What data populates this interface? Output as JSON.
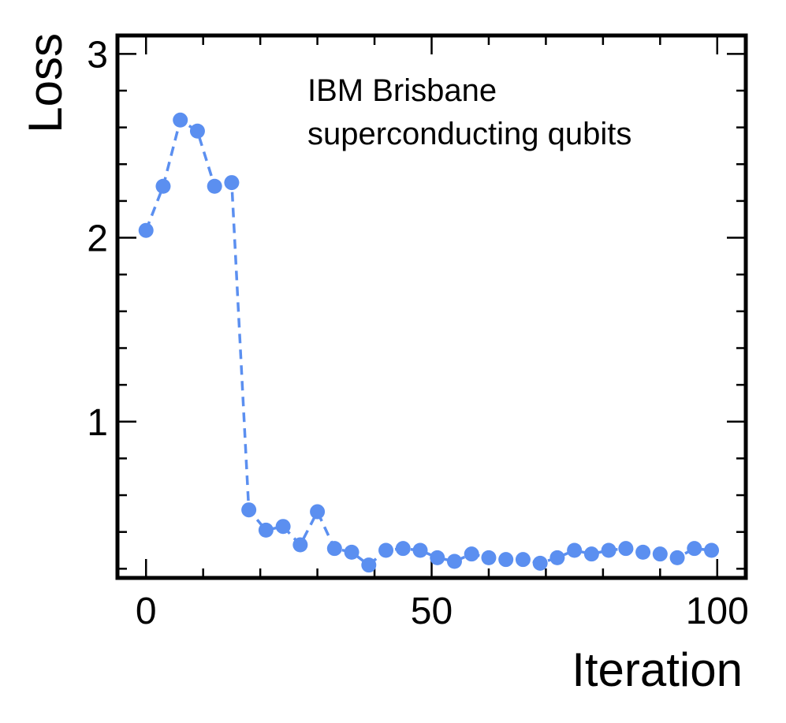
{
  "chart_data": {
    "type": "line",
    "xlabel": "Iteration",
    "ylabel": "Loss",
    "xlim": [
      -5,
      105
    ],
    "ylim": [
      0.15,
      3.1
    ],
    "x_ticks": [
      0,
      50,
      100
    ],
    "x_tick_labels": [
      "0",
      "50",
      "100"
    ],
    "y_ticks": [
      1,
      2,
      3
    ],
    "y_tick_labels": [
      "1",
      "2",
      "3"
    ],
    "annotation": [
      "IBM Brisbane",
      "superconducting qubits"
    ],
    "grid": false,
    "series": [
      {
        "color": "#5b8ff0",
        "line_style": "dashed",
        "marker": "circle",
        "x": [
          0,
          3,
          6,
          9,
          12,
          15,
          18,
          21,
          24,
          27,
          30,
          33,
          36,
          39,
          42,
          45,
          48,
          51,
          54,
          57,
          60,
          63,
          66,
          69,
          72,
          75,
          78,
          81,
          84,
          87,
          90,
          93,
          96,
          99
        ],
        "y": [
          2.04,
          2.28,
          2.64,
          2.58,
          2.28,
          2.3,
          0.52,
          0.41,
          0.43,
          0.33,
          0.51,
          0.31,
          0.29,
          0.22,
          0.3,
          0.31,
          0.3,
          0.26,
          0.24,
          0.28,
          0.26,
          0.25,
          0.25,
          0.23,
          0.26,
          0.3,
          0.28,
          0.3,
          0.31,
          0.29,
          0.28,
          0.26,
          0.31,
          0.3
        ]
      }
    ]
  }
}
